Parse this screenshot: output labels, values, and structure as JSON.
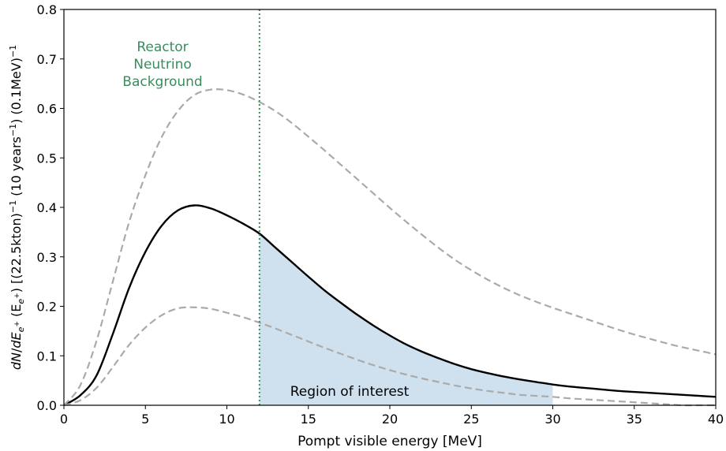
{
  "chart_data": {
    "type": "line",
    "xlabel": "Pompt visible energy [MeV]",
    "ylabel_parts": {
      "d1": "dN",
      "slash": "/",
      "d2": "dE",
      "esub": "e",
      "esup": "+",
      "paren_open": " (E",
      "esub2": "e",
      "esup2": "+",
      "mid": ") [(22.5kton)",
      "exp1": "−1",
      "mid2": " (10 years",
      "exp2": "−1",
      "mid3": ") (0.1MeV)",
      "exp3": "−1"
    },
    "xlim": [
      0,
      40
    ],
    "ylim": [
      0,
      0.8
    ],
    "xticks": [
      0,
      5,
      10,
      15,
      20,
      25,
      30,
      35,
      40
    ],
    "yticks": [
      0.0,
      0.1,
      0.2,
      0.3,
      0.4,
      0.5,
      0.6,
      0.7,
      0.8
    ],
    "ytick_labels": [
      "0.0",
      "0.1",
      "0.2",
      "0.3",
      "0.4",
      "0.5",
      "0.6",
      "0.7",
      "0.8"
    ],
    "grid": false,
    "x": [
      0,
      1,
      2,
      3,
      4,
      5,
      6,
      7,
      8,
      9,
      10,
      11,
      12,
      13,
      14,
      15,
      16,
      17,
      18,
      19,
      20,
      21,
      22,
      23,
      24,
      25,
      26,
      27,
      28,
      29,
      30,
      31,
      32,
      33,
      34,
      35,
      36,
      37,
      38,
      39,
      40
    ],
    "series": [
      {
        "style": "central",
        "color": "#000000",
        "values": [
          0.0,
          0.02,
          0.06,
          0.144,
          0.237,
          0.31,
          0.363,
          0.394,
          0.404,
          0.398,
          0.384,
          0.367,
          0.347,
          0.318,
          0.289,
          0.26,
          0.232,
          0.207,
          0.183,
          0.161,
          0.141,
          0.123,
          0.108,
          0.095,
          0.083,
          0.073,
          0.065,
          0.058,
          0.052,
          0.047,
          0.042,
          0.038,
          0.035,
          0.032,
          0.029,
          0.027,
          0.025,
          0.023,
          0.021,
          0.019,
          0.017
        ]
      },
      {
        "style": "upper",
        "color": "#aaaaaa",
        "values": [
          0.0,
          0.04,
          0.13,
          0.25,
          0.37,
          0.465,
          0.542,
          0.595,
          0.627,
          0.638,
          0.637,
          0.628,
          0.613,
          0.594,
          0.57,
          0.543,
          0.515,
          0.486,
          0.457,
          0.428,
          0.399,
          0.371,
          0.344,
          0.318,
          0.294,
          0.273,
          0.254,
          0.237,
          0.222,
          0.209,
          0.197,
          0.186,
          0.175,
          0.164,
          0.153,
          0.143,
          0.134,
          0.125,
          0.117,
          0.11,
          0.103
        ]
      },
      {
        "style": "lower",
        "color": "#aaaaaa",
        "values": [
          0.0,
          0.01,
          0.035,
          0.077,
          0.122,
          0.157,
          0.182,
          0.196,
          0.198,
          0.195,
          0.187,
          0.178,
          0.167,
          0.155,
          0.142,
          0.129,
          0.116,
          0.104,
          0.092,
          0.081,
          0.071,
          0.062,
          0.054,
          0.047,
          0.04,
          0.034,
          0.029,
          0.025,
          0.021,
          0.019,
          0.017,
          0.014,
          0.012,
          0.01,
          0.008,
          0.006,
          0.004,
          0.002,
          0.0,
          0.0,
          0.0
        ]
      }
    ],
    "region": {
      "label": "Region of interest",
      "x_start": 12,
      "x_end": 30,
      "color": "#cfe0ee"
    },
    "threshold": {
      "x": 12,
      "label_lines": [
        "Reactor",
        "Neutrino",
        "Background"
      ],
      "color": "#3a8c5c"
    }
  }
}
